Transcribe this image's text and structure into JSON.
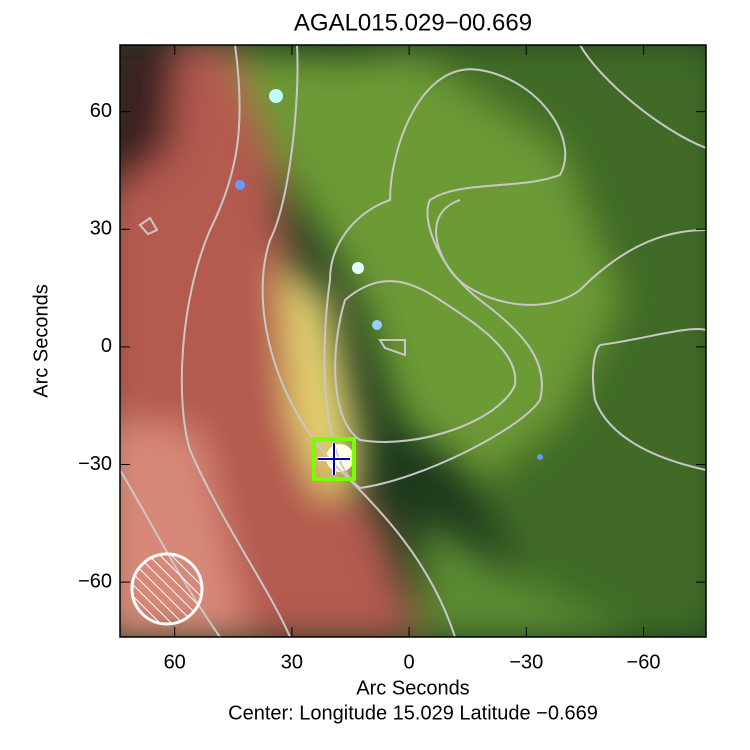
{
  "chart_data": {
    "type": "image",
    "title": "AGAL015.029−00.669",
    "xlabel": "Arc Seconds",
    "ylabel": "Arc Seconds",
    "caption": "Center:  Longitude 15.029 Latitude −0.669",
    "xlim": [
      74,
      -76
    ],
    "ylim": [
      -74,
      77
    ],
    "xticks": [
      60,
      30,
      0,
      {
        "value": -30,
        "label": "−30"
      },
      {
        "value": -60,
        "label": "−60"
      }
    ],
    "yticks": [
      {
        "value": -60,
        "label": "−60"
      },
      {
        "value": -30,
        "label": "−30"
      },
      0,
      30,
      60
    ]
  }
}
